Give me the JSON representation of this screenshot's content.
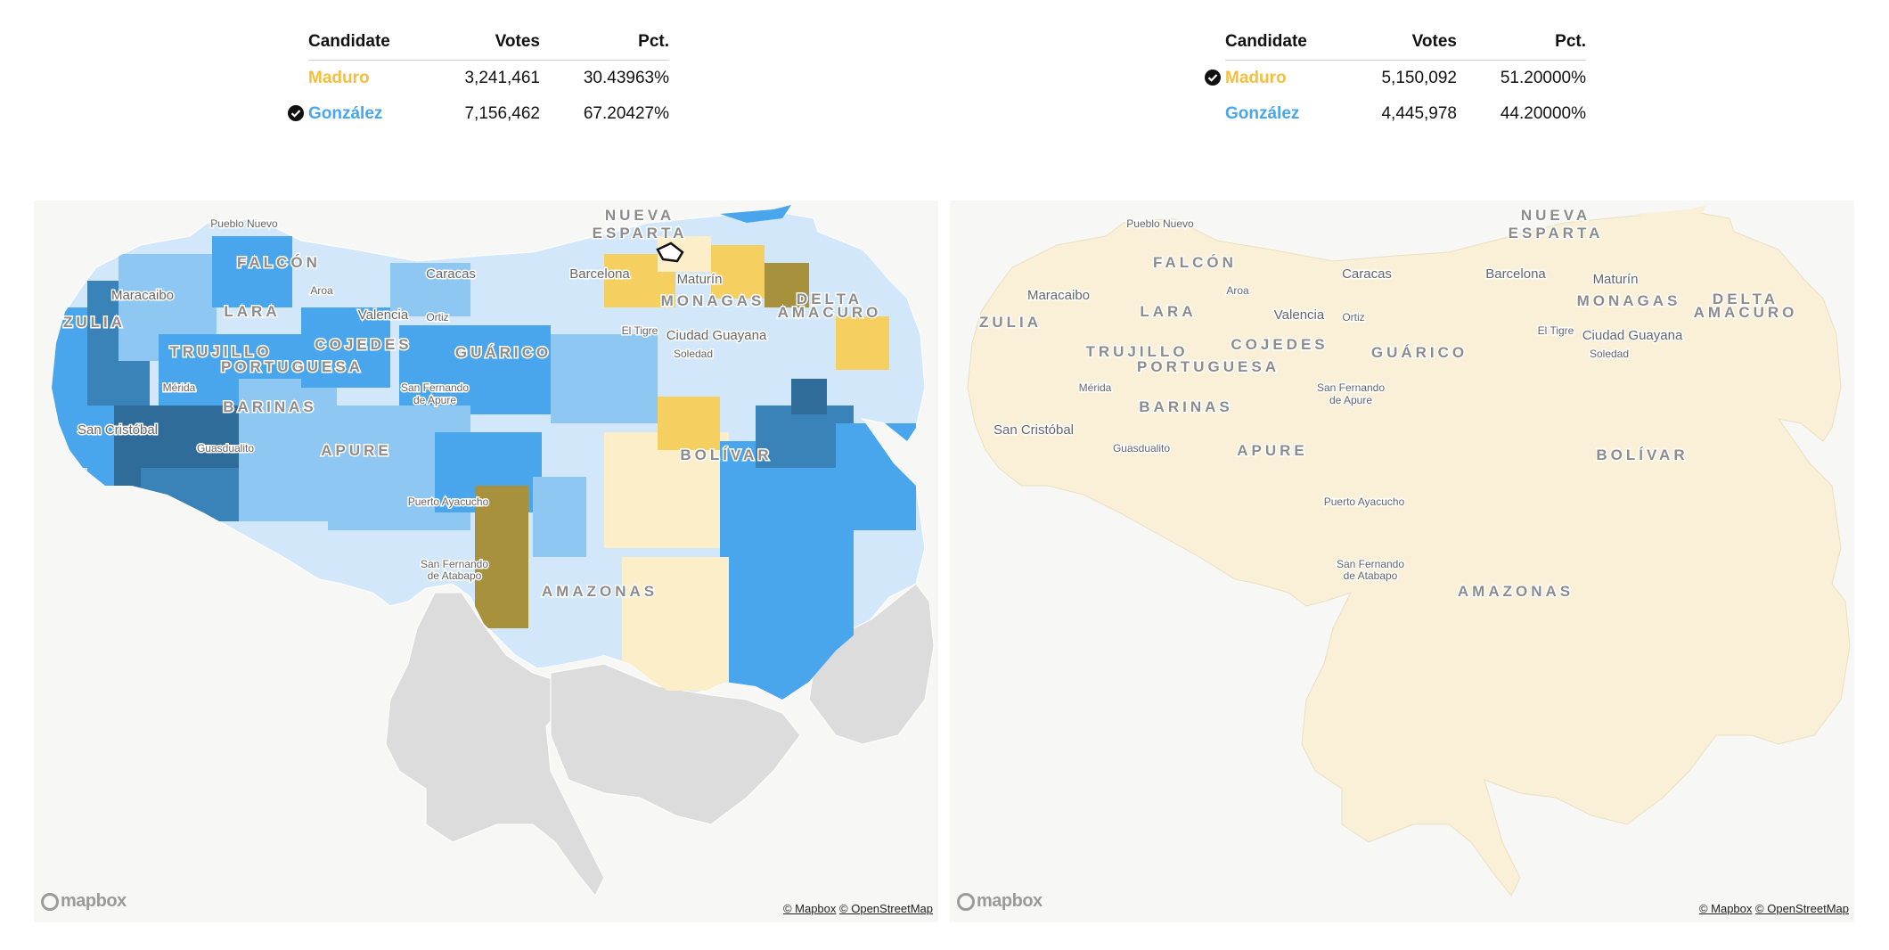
{
  "results_left": {
    "headers": {
      "candidate": "Candidate",
      "votes": "Votes",
      "pct": "Pct."
    },
    "rows": [
      {
        "name": "Maduro",
        "votes": "3,241,461",
        "pct": "30.43963%",
        "color": "#f5bf3c",
        "winner": false
      },
      {
        "name": "González",
        "votes": "7,156,462",
        "pct": "67.20427%",
        "color": "#49a6ec",
        "winner": true
      }
    ]
  },
  "results_right": {
    "headers": {
      "candidate": "Candidate",
      "votes": "Votes",
      "pct": "Pct."
    },
    "rows": [
      {
        "name": "Maduro",
        "votes": "5,150,092",
        "pct": "51.20000%",
        "color": "#f5bf3c",
        "winner": true
      },
      {
        "name": "González",
        "votes": "4,445,978",
        "pct": "44.20000%",
        "color": "#49a6ec",
        "winner": false
      }
    ]
  },
  "map_labels": {
    "states": {
      "nueva_esparta_1": "NUEVA",
      "nueva_esparta_2": "ESPARTA",
      "falcon": "FALCÓN",
      "zulia": "ZULIA",
      "lara": "LARA",
      "trujillo": "TRUJILLO",
      "cojedes": "COJEDES",
      "guarico": "GUÁRICO",
      "portuguesa": "PORTUGUESA",
      "barinas": "BARINAS",
      "apure": "APURE",
      "monagas": "MONAGAS",
      "delta_1": "DELTA",
      "delta_2": "AMACURO",
      "bolivar": "BOLÍVAR",
      "amazonas": "AMAZONAS"
    },
    "cities": {
      "pueblo_nuevo": "Pueblo Nuevo",
      "caracas": "Caracas",
      "barcelona": "Barcelona",
      "maturin": "Maturín",
      "maracaibo": "Maracaibo",
      "aroa": "Aroa",
      "valencia": "Valencia",
      "ortiz": "Ortiz",
      "el_tigre": "El Tigre",
      "ciudad_guayana": "Ciudad Guayana",
      "soledad": "Soledad",
      "merida": "Mérida",
      "san_fernando_1": "San Fernando",
      "san_fernando_2": "de Apure",
      "san_cristobal": "San Cristóbal",
      "guasdualito": "Guasdualito",
      "puerto_ayacucho": "Puerto Ayacucho",
      "sf_atabapo_1": "San Fernando",
      "sf_atabapo_2": "de Atabapo"
    }
  },
  "map_colors": {
    "gonzalez_light": "#d2e8fa",
    "gonzalez_mid": "#8ec7f2",
    "gonzalez": "#49a6ec",
    "gonzalez_dark": "#3a83b8",
    "gonzalez_darker": "#2f6c9a",
    "maduro_light": "#fbeec8",
    "maduro": "#f5cf60",
    "maduro_dark": "#a7913d",
    "no_data": "#dcdcdc",
    "land_right": "#faf0d8"
  },
  "attribution": {
    "logo": "mapbox",
    "mapbox": "© Mapbox",
    "osm": "© OpenStreetMap"
  }
}
